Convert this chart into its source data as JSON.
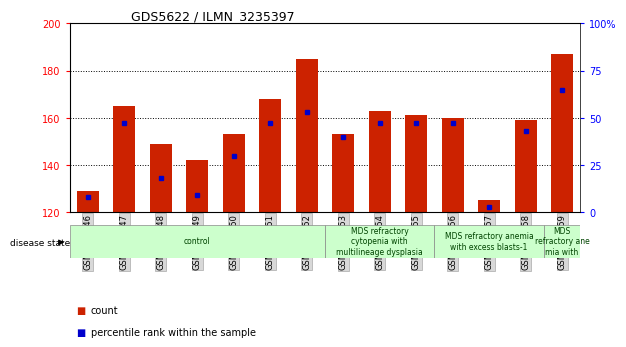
{
  "title": "GDS5622 / ILMN_3235397",
  "samples": [
    "GSM1515746",
    "GSM1515747",
    "GSM1515748",
    "GSM1515749",
    "GSM1515750",
    "GSM1515751",
    "GSM1515752",
    "GSM1515753",
    "GSM1515754",
    "GSM1515755",
    "GSM1515756",
    "GSM1515757",
    "GSM1515758",
    "GSM1515759"
  ],
  "counts": [
    129,
    165,
    149,
    142,
    153,
    168,
    185,
    153,
    163,
    161,
    160,
    125,
    159,
    187
  ],
  "percentile_ranks": [
    8,
    47,
    18,
    9,
    30,
    47,
    53,
    40,
    47,
    47,
    47,
    3,
    43,
    65
  ],
  "ylim_left": [
    120,
    200
  ],
  "ylim_right": [
    0,
    100
  ],
  "yticks_left": [
    120,
    140,
    160,
    180,
    200
  ],
  "yticks_right": [
    0,
    25,
    50,
    75,
    100
  ],
  "ytick_right_labels": [
    "0",
    "25",
    "50",
    "75",
    "100%"
  ],
  "bar_color": "#cc2200",
  "dot_color": "#0000cc",
  "groups": [
    {
      "label": "control",
      "start": 0,
      "end": 7,
      "color": "#ccffcc"
    },
    {
      "label": "MDS refractory\ncytopenia with\nmultilineage dysplasia",
      "start": 7,
      "end": 10,
      "color": "#ccffcc"
    },
    {
      "label": "MDS refractory anemia\nwith excess blasts-1",
      "start": 10,
      "end": 13,
      "color": "#ccffcc"
    },
    {
      "label": "MDS\nrefractory ane\nmia with",
      "start": 13,
      "end": 14,
      "color": "#ccffcc"
    }
  ],
  "legend_count_label": "count",
  "legend_pct_label": "percentile rank within the sample",
  "disease_state_label": "disease state"
}
